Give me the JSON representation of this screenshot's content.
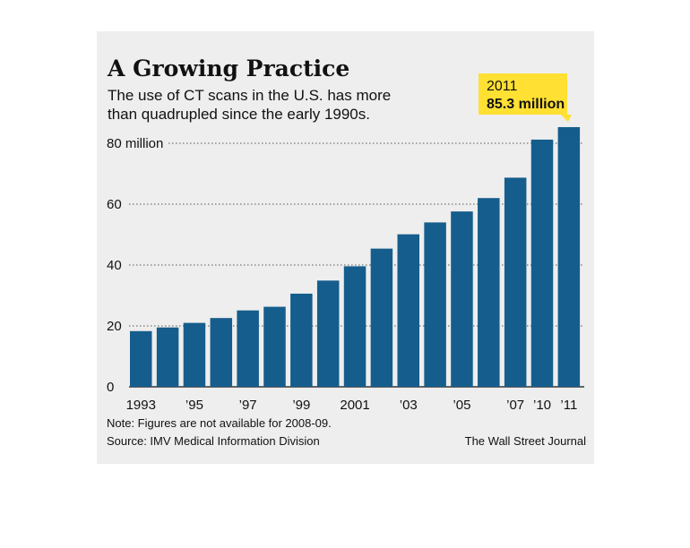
{
  "chart_data": {
    "type": "bar",
    "title": "A Growing Practice",
    "subtitle_lines": [
      "The use of CT scans in the U.S. has more",
      "than quadrupled since the early 1990s."
    ],
    "categories": [
      "1993",
      "1994",
      "1995",
      "1996",
      "1997",
      "1998",
      "1999",
      "2000",
      "2001",
      "2002",
      "2003",
      "2004",
      "2005",
      "2006",
      "2007",
      "2010",
      "2011"
    ],
    "tick_labels": [
      "1993",
      "",
      "’95",
      "",
      "’97",
      "",
      "’99",
      "",
      "2001",
      "",
      "’03",
      "",
      "’05",
      "",
      "’07",
      "’10",
      "’11"
    ],
    "values": [
      18.3,
      19.5,
      21.0,
      22.6,
      25.1,
      26.3,
      30.6,
      34.9,
      39.6,
      45.4,
      50.1,
      54.0,
      57.6,
      62.0,
      68.7,
      81.2,
      85.3
    ],
    "ylim": [
      0,
      90
    ],
    "yticks": [
      0,
      20,
      40,
      60,
      80
    ],
    "ytick_labels": [
      "0",
      "20",
      "40",
      "60",
      "80 million"
    ],
    "bar_color": "#155d8c",
    "grid": "dotted horizontal",
    "callout": {
      "year": "2011",
      "value_label": "85.3 million",
      "color": "#ffe033"
    },
    "note": "Note: Figures are not available for 2008-09.",
    "source": "Source: IMV Medical Information Division",
    "credit": "The Wall Street Journal"
  }
}
